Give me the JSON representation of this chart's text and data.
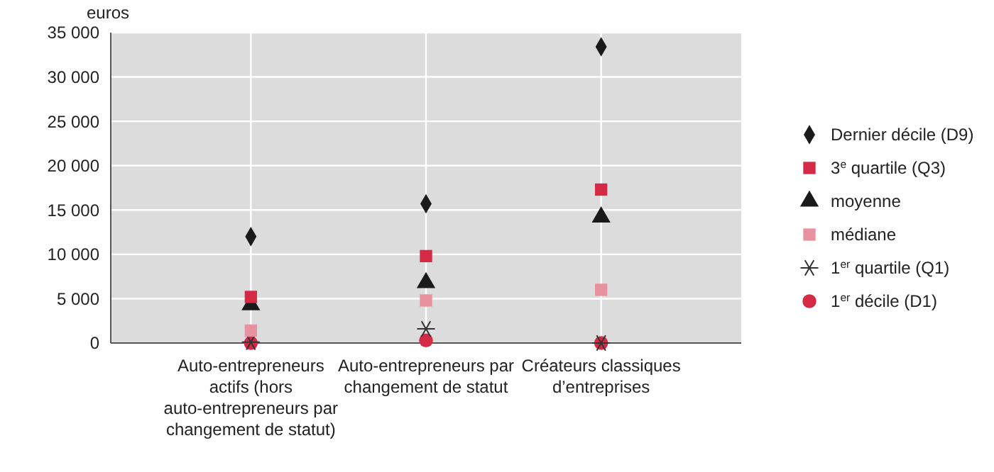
{
  "chart_data": {
    "type": "scatter",
    "ylabel": "euros",
    "categories": [
      "Auto-entrepreneurs actifs (hors auto-entrepreneurs par changement de statut)",
      "Auto-entrepreneurs par changement de statut",
      "Créateurs classiques d’entreprises"
    ],
    "ylim": [
      0,
      35000
    ],
    "yticks": [
      0,
      {
        "value": 5000,
        "label": "5 000"
      },
      {
        "value": 10000,
        "label": "10 000"
      },
      {
        "value": 15000,
        "label": "15 000"
      },
      {
        "value": 20000,
        "label": "20 000"
      },
      {
        "value": 25000,
        "label": "25 000"
      },
      {
        "value": 30000,
        "label": "30 000"
      },
      {
        "value": 35000,
        "label": "35 000"
      }
    ],
    "grid": true,
    "legend": "right",
    "series": [
      {
        "name": "Dernier décile (D9)",
        "color": "#1a1a1a",
        "marker": "diamond",
        "values": [
          12000,
          15700,
          33400
        ]
      },
      {
        "name": "3$^{e}$ quartile (Q3)",
        "color": "#d42a45",
        "marker": "square",
        "values": [
          5200,
          9800,
          17300
        ]
      },
      {
        "name": "moyenne",
        "color": "#1a1a1a",
        "marker": "triangle",
        "values": [
          4300,
          6800,
          14200
        ]
      },
      {
        "name": "médiane",
        "color": "#e8919f",
        "marker": "square",
        "values": [
          1400,
          4800,
          6000
        ]
      },
      {
        "name": "1$^{er}$ quartile (Q1)",
        "color": "#333333",
        "marker": "cross",
        "values": [
          100,
          1600,
          0
        ]
      },
      {
        "name": "1$^{er}$ décile (D1)",
        "color": "#d42a45",
        "marker": "circle",
        "values": [
          0,
          300,
          0
        ]
      }
    ]
  }
}
